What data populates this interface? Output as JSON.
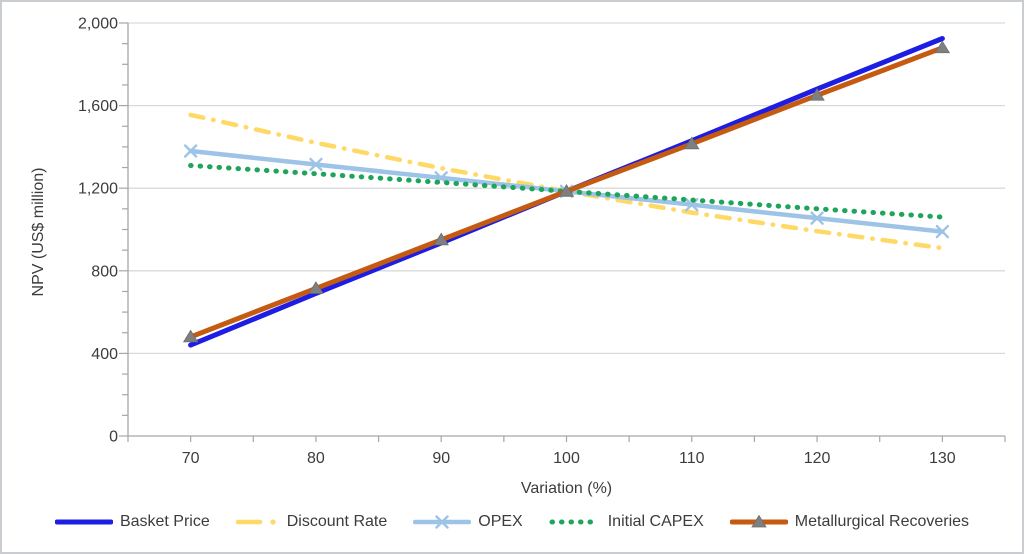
{
  "chart_data": {
    "type": "line",
    "title": "",
    "xlabel": "Variation (%)",
    "ylabel": "NPV (US$ million)",
    "xlim": [
      65,
      135
    ],
    "ylim": [
      0,
      2000
    ],
    "x": [
      70,
      80,
      90,
      100,
      110,
      120,
      130
    ],
    "x_tick_labels": [
      "70",
      "80",
      "90",
      "100",
      "110",
      "120",
      "130"
    ],
    "y_ticks": [
      0,
      400,
      800,
      1200,
      1600,
      2000
    ],
    "y_tick_labels": [
      "0",
      "400",
      "800",
      "1,200",
      "1,600",
      "2,000"
    ],
    "x_minor_step": 5,
    "y_minor_step": 100,
    "grid": "horizontal",
    "legend_position": "bottom",
    "base_case": {
      "variation_pct": 100,
      "npv": 1185
    },
    "series": [
      {
        "name": "Basket Price",
        "color": "#1d1de3",
        "style": "solid",
        "marker": "none",
        "width": 5,
        "values": [
          440,
          690,
          935,
          1185,
          1430,
          1680,
          1925
        ]
      },
      {
        "name": "Discount Rate",
        "color": "#ffd965",
        "style": "dashdot",
        "marker": "none",
        "width": 4.5,
        "values": [
          1555,
          1420,
          1297,
          1185,
          1082,
          992,
          910
        ]
      },
      {
        "name": "OPEX",
        "color": "#9dc3e6",
        "style": "solid",
        "marker": "x",
        "width": 4.5,
        "values": [
          1380,
          1315,
          1250,
          1185,
          1120,
          1055,
          990
        ]
      },
      {
        "name": "Initial CAPEX",
        "color": "#1fa45c",
        "style": "dotted",
        "marker": "none",
        "width": 5,
        "values": [
          1310,
          1270,
          1228,
          1185,
          1143,
          1100,
          1060
        ]
      },
      {
        "name": "Metallurgical Recoveries",
        "color": "#c55a11",
        "style": "solid",
        "marker": "triangle",
        "width": 5,
        "marker_color": "#7f7f7f",
        "values": [
          480,
          715,
          950,
          1185,
          1415,
          1650,
          1880
        ]
      }
    ],
    "colors": {
      "grid": "#d9d9d9",
      "axis": "#a6a6a6",
      "text": "#3c3c3c",
      "triangle_marker": "#7f7f7f"
    }
  }
}
